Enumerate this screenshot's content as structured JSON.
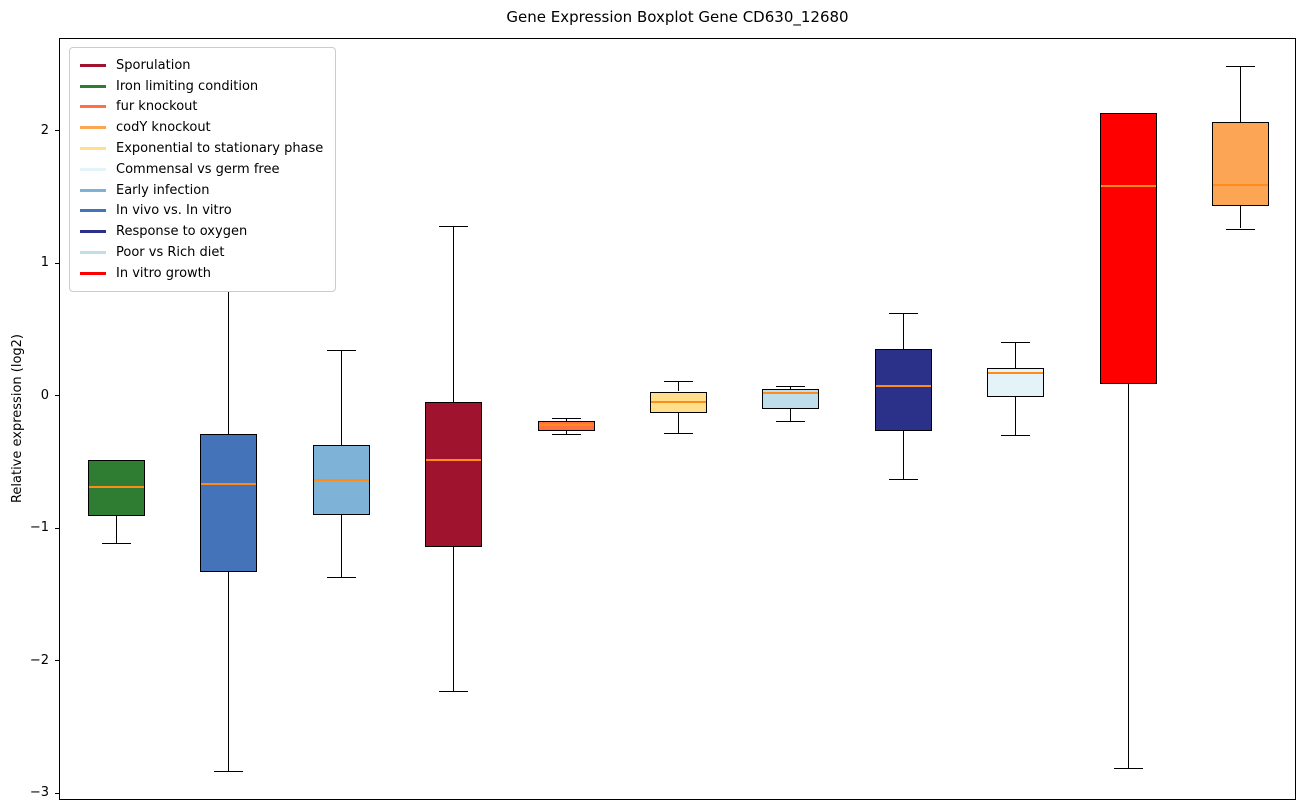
{
  "chart_data": {
    "type": "boxplot",
    "title": "Gene Expression Boxplot Gene CD630_12680",
    "xlabel": "",
    "ylabel": "Relative expression (log2)",
    "ylim": [
      -3.05,
      2.7
    ],
    "yticks": [
      2,
      1,
      0,
      -1,
      -2,
      -3
    ],
    "grid": false,
    "legend_position": "upper left",
    "median_color": "#FF8C1A",
    "legend": [
      {
        "label": "Sporulation",
        "color": "#A0132F"
      },
      {
        "label": "Iron limiting condition",
        "color": "#2E7D32"
      },
      {
        "label": "fur knockout",
        "color": "#FF7043"
      },
      {
        "label": "codY knockout",
        "color": "#FBA555"
      },
      {
        "label": "Exponential to stationary phase",
        "color": "#FFDE8C"
      },
      {
        "label": "Commensal vs germ free",
        "color": "#E4F3F8"
      },
      {
        "label": "Early infection",
        "color": "#7FB2D7"
      },
      {
        "label": "In vivo vs. In vitro",
        "color": "#4473B9"
      },
      {
        "label": "Response to oxygen",
        "color": "#2B3189"
      },
      {
        "label": "Poor vs Rich diet",
        "color": "#BFDEEC"
      },
      {
        "label": "In vitro growth",
        "color": "#FF0000"
      }
    ],
    "series": [
      {
        "name": "Iron limiting condition",
        "color": "#2E7D32",
        "whislo": -1.1,
        "q1": -0.9,
        "med": -0.68,
        "q3": -0.48,
        "whishi": -0.48
      },
      {
        "name": "In vivo vs. In vitro",
        "color": "#4473B9",
        "whislo": -2.82,
        "q1": -1.32,
        "med": -0.66,
        "q3": -0.28,
        "whishi": 0.9
      },
      {
        "name": "Early infection",
        "color": "#7FB2D7",
        "whislo": -1.36,
        "q1": -0.89,
        "med": -0.63,
        "q3": -0.36,
        "whishi": 0.35
      },
      {
        "name": "Sporulation",
        "color": "#A0132F",
        "whislo": -2.22,
        "q1": -1.13,
        "med": -0.48,
        "q3": -0.04,
        "whishi": 1.29
      },
      {
        "name": "fur knockout",
        "color": "#FF7043",
        "whislo": -0.28,
        "q1": -0.26,
        "med": -0.21,
        "q3": -0.18,
        "whishi": -0.16
      },
      {
        "name": "Exponential to stationary phase",
        "color": "#FFDE8C",
        "whislo": -0.27,
        "q1": -0.12,
        "med": -0.04,
        "q3": 0.04,
        "whishi": 0.12
      },
      {
        "name": "Poor vs Rich diet",
        "color": "#BFDEEC",
        "whislo": -0.18,
        "q1": -0.09,
        "med": 0.03,
        "q3": 0.06,
        "whishi": 0.08
      },
      {
        "name": "Response to oxygen",
        "color": "#2B3189",
        "whislo": -0.62,
        "q1": -0.26,
        "med": 0.08,
        "q3": 0.36,
        "whishi": 0.63
      },
      {
        "name": "Commensal vs germ free",
        "color": "#E4F3F8",
        "whislo": -0.29,
        "q1": 0.0,
        "med": 0.18,
        "q3": 0.22,
        "whishi": 0.41
      },
      {
        "name": "In vitro growth",
        "color": "#FF0000",
        "whislo": -2.8,
        "q1": 0.1,
        "med": 1.59,
        "q3": 2.14,
        "whishi": 2.14
      },
      {
        "name": "codY knockout",
        "color": "#FBA555",
        "whislo": 1.27,
        "q1": 1.44,
        "med": 1.6,
        "q3": 2.07,
        "whishi": 2.5
      }
    ]
  }
}
